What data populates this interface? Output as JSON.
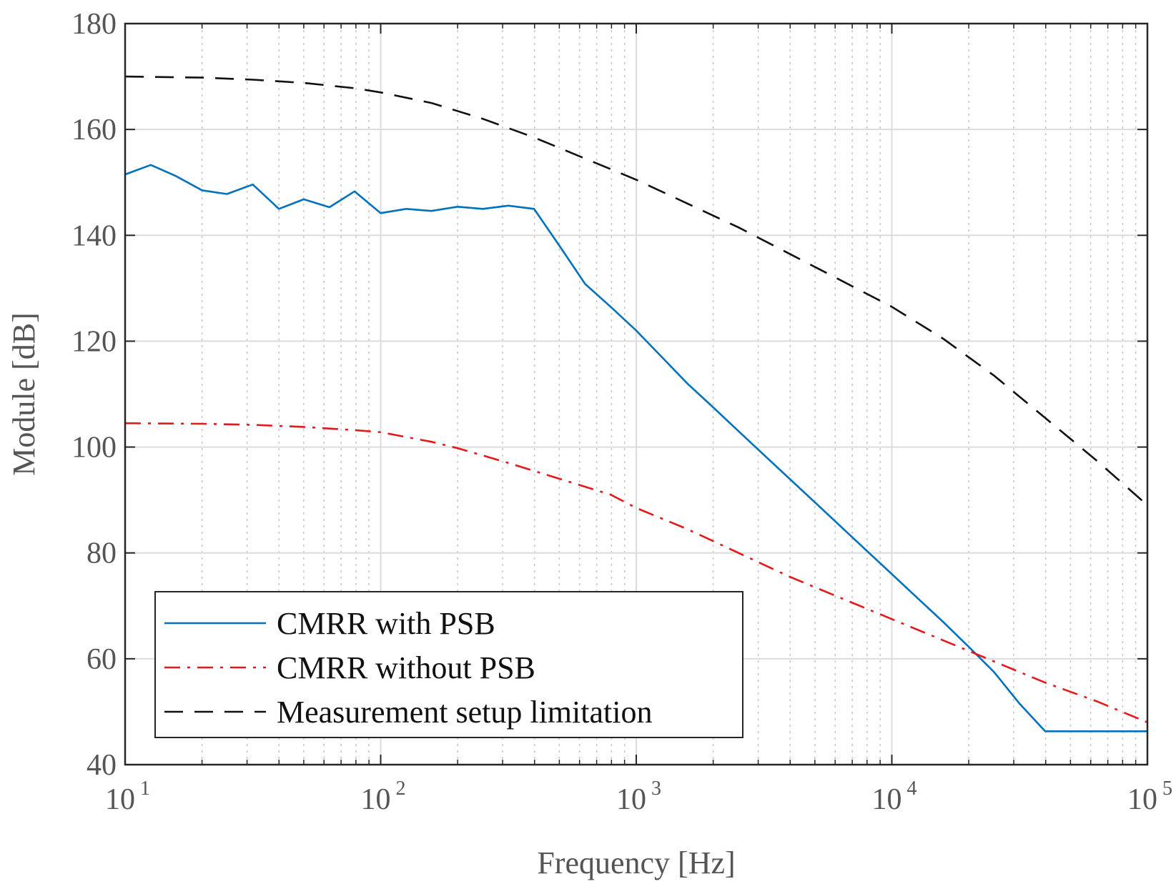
{
  "chart_data": {
    "type": "line",
    "x_scale": "log",
    "xlabel": "Frequency [Hz]",
    "ylabel": "Module [dB]",
    "xlim": [
      10,
      100000
    ],
    "ylim": [
      40,
      180
    ],
    "grid": true,
    "legend_position": "bottom-left",
    "x_ticks": [
      {
        "value": 10,
        "base": "10",
        "exp": "1"
      },
      {
        "value": 100,
        "base": "10",
        "exp": "2"
      },
      {
        "value": 1000,
        "base": "10",
        "exp": "3"
      },
      {
        "value": 10000,
        "base": "10",
        "exp": "4"
      },
      {
        "value": 100000,
        "base": "10",
        "exp": "5"
      }
    ],
    "y_ticks": [
      {
        "value": 40,
        "label": "40"
      },
      {
        "value": 60,
        "label": "60"
      },
      {
        "value": 80,
        "label": "80"
      },
      {
        "value": 100,
        "label": "100"
      },
      {
        "value": 120,
        "label": "120"
      },
      {
        "value": 140,
        "label": "140"
      },
      {
        "value": 160,
        "label": "160"
      },
      {
        "value": 180,
        "label": "180"
      }
    ],
    "series": [
      {
        "name": "CMRR with PSB",
        "color": "#0072bd",
        "style": "solid",
        "x": [
          10,
          12.6,
          15.8,
          20,
          25,
          31.6,
          40,
          50,
          63,
          79,
          100,
          126,
          158,
          200,
          251,
          316,
          398,
          501,
          631,
          794,
          1000,
          1259,
          1585,
          2000,
          2512,
          3162,
          3981,
          5012,
          6310,
          7943,
          10000,
          12589,
          15849,
          19953,
          25119,
          31623,
          39811,
          50119,
          63096,
          79433,
          100000
        ],
        "values": [
          151.5,
          153.3,
          151.2,
          148.5,
          147.8,
          149.6,
          145.0,
          146.8,
          145.3,
          148.3,
          144.2,
          145.0,
          144.6,
          145.4,
          145.0,
          145.6,
          145.0,
          138.0,
          130.8,
          126.5,
          122.0,
          117.0,
          112.0,
          107.5,
          103.0,
          98.5,
          94.0,
          89.5,
          85.0,
          80.5,
          76.0,
          71.5,
          67.0,
          62.3,
          57.5,
          51.5,
          46.3,
          46.3,
          46.3,
          46.3,
          46.3
        ]
      },
      {
        "name": "CMRR without PSB",
        "color": "#e31a1c",
        "style": "dashdot",
        "x": [
          10,
          20,
          31.6,
          50,
          79,
          100,
          158,
          200,
          316,
          501,
          794,
          1000,
          1585,
          2512,
          3981,
          6310,
          10000,
          15849,
          25119,
          39811,
          63096,
          100000
        ],
        "values": [
          104.5,
          104.4,
          104.2,
          103.8,
          103.2,
          102.8,
          101.0,
          99.8,
          97.0,
          94.0,
          91.0,
          88.5,
          84.5,
          80.0,
          75.5,
          71.5,
          67.5,
          63.5,
          59.5,
          55.5,
          52.0,
          48.0
        ]
      },
      {
        "name": "Measurement setup limitation",
        "color": "#111111",
        "style": "dashed",
        "x": [
          10,
          20,
          31.6,
          50,
          79,
          100,
          158,
          251,
          398,
          631,
          1000,
          1585,
          2512,
          3981,
          6310,
          10000,
          15849,
          25119,
          39811,
          63096,
          100000
        ],
        "values": [
          170.0,
          169.8,
          169.4,
          168.8,
          167.8,
          167.0,
          165.0,
          162.0,
          158.5,
          154.5,
          150.5,
          146.0,
          141.5,
          136.5,
          131.5,
          126.5,
          120.5,
          113.5,
          105.5,
          97.5,
          89.0
        ]
      }
    ]
  }
}
